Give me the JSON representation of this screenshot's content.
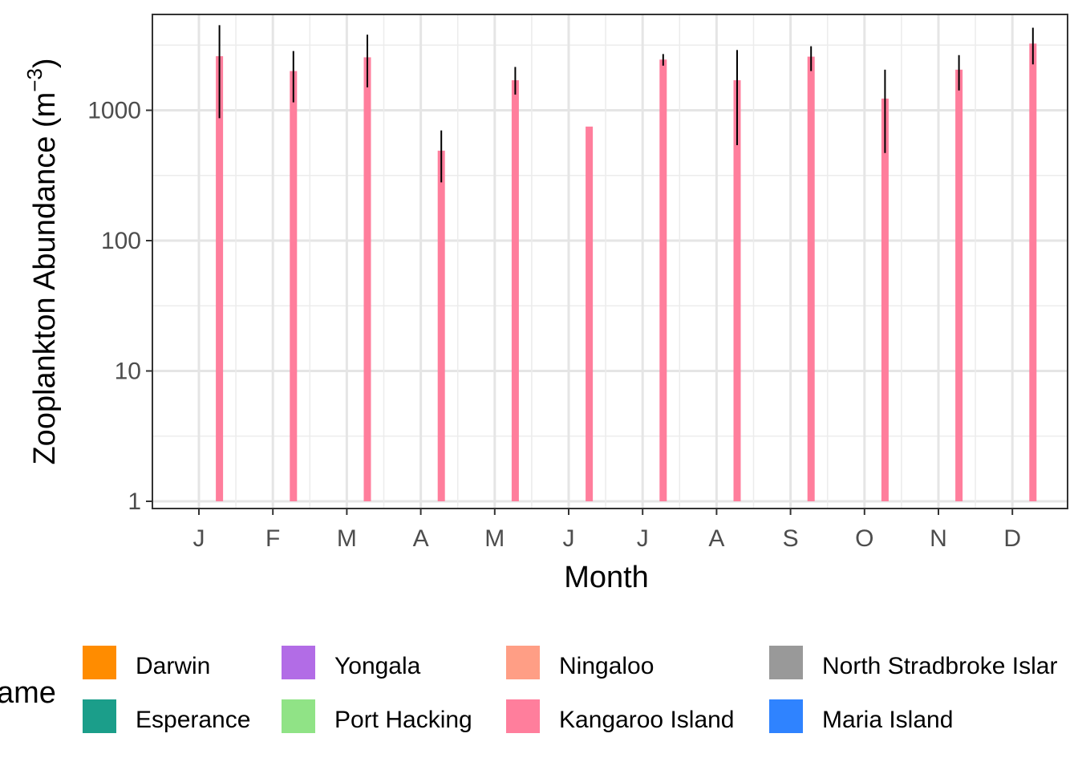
{
  "chart_data": {
    "type": "bar",
    "xlabel": "Month",
    "ylabel": {
      "main": "Zooplankton Abundance (m",
      "exponent": "−3",
      "close": ")"
    },
    "y_scale": "log10",
    "ylim": [
      1,
      6000
    ],
    "y_ticks": [
      {
        "value": 1,
        "label": "1"
      },
      {
        "value": 10,
        "label": "10"
      },
      {
        "value": 100,
        "label": "100"
      },
      {
        "value": 1000,
        "label": "1000"
      }
    ],
    "categories": [
      "J",
      "F",
      "M",
      "A",
      "M",
      "J",
      "J",
      "A",
      "S",
      "O",
      "N",
      "D"
    ],
    "grid": true,
    "series": [
      {
        "name": "Darwin",
        "color": "#FF8C00",
        "values": [
          null,
          null,
          null,
          null,
          null,
          null,
          null,
          null,
          null,
          null,
          null,
          null
        ]
      },
      {
        "name": "Esperance",
        "color": "#1B9E8A",
        "values": [
          null,
          null,
          null,
          null,
          null,
          null,
          null,
          null,
          null,
          null,
          null,
          null
        ]
      },
      {
        "name": "Yongala",
        "color": "#B26CE6",
        "values": [
          null,
          null,
          null,
          null,
          null,
          null,
          null,
          null,
          null,
          null,
          null,
          null
        ]
      },
      {
        "name": "Port Hacking",
        "color": "#90E386",
        "values": [
          null,
          null,
          null,
          null,
          null,
          null,
          null,
          null,
          null,
          null,
          null,
          null
        ]
      },
      {
        "name": "Ningaloo",
        "color": "#FF9E85",
        "values": [
          null,
          null,
          null,
          null,
          null,
          null,
          null,
          null,
          null,
          null,
          null,
          null
        ]
      },
      {
        "name": "Kangaroo Island",
        "color": "#FF7E9C",
        "values": [
          2600,
          2000,
          2550,
          490,
          1700,
          750,
          2450,
          1700,
          2580,
          1230,
          2050,
          3250
        ],
        "error_low": [
          870,
          1150,
          1500,
          280,
          1320,
          null,
          2200,
          540,
          2000,
          470,
          1420,
          2250
        ],
        "error_high": [
          4500,
          2850,
          3800,
          700,
          2150,
          null,
          2700,
          2900,
          3100,
          2050,
          2650,
          4300
        ]
      },
      {
        "name": "North Stradbroke Island",
        "color": "#D40000",
        "values": [
          null,
          null,
          null,
          null,
          null,
          null,
          null,
          null,
          null,
          null,
          null,
          null
        ]
      },
      {
        "name": "Maria Island",
        "color": "#2F83FF",
        "values": [
          null,
          null,
          null,
          null,
          null,
          null,
          null,
          null,
          null,
          null,
          null,
          null
        ]
      }
    ],
    "legend": {
      "placement": "bottom",
      "title": "ame",
      "columns": [
        [
          "Darwin",
          "Esperance"
        ],
        [
          "Yongala",
          "Port Hacking"
        ],
        [
          "Ningaloo",
          "Kangaroo Island"
        ],
        [
          "North Stradbroke Islar",
          "Maria Island"
        ]
      ]
    }
  }
}
